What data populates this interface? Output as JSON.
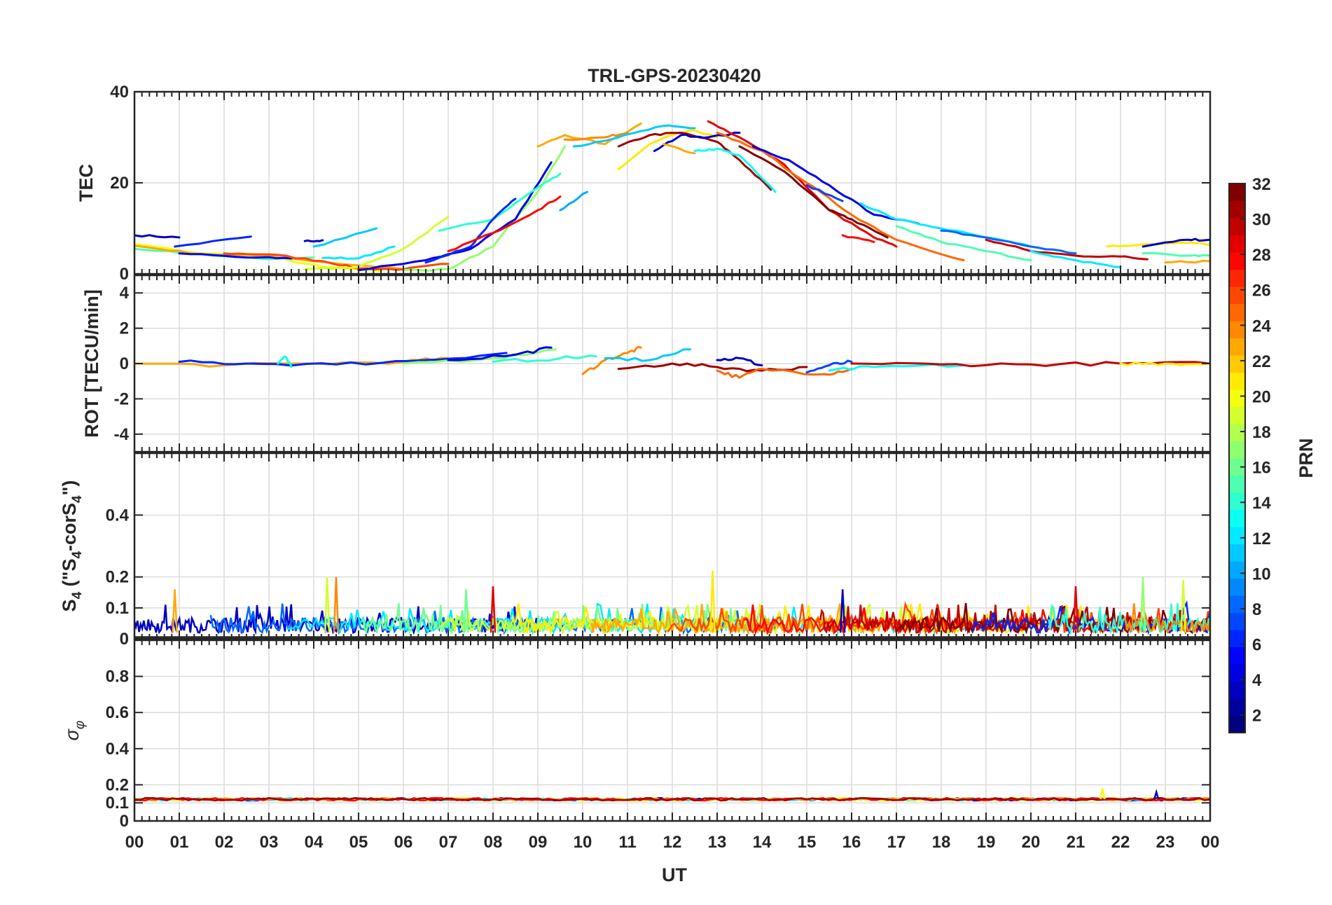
{
  "chart_data": {
    "type": "line",
    "title": "TRL-GPS-20230420",
    "xlabel": "UT",
    "x_tick_labels": [
      "00",
      "01",
      "02",
      "03",
      "04",
      "05",
      "06",
      "07",
      "08",
      "09",
      "10",
      "11",
      "12",
      "13",
      "14",
      "15",
      "16",
      "17",
      "18",
      "19",
      "20",
      "21",
      "22",
      "23",
      "00"
    ],
    "xlim": [
      0,
      24
    ],
    "grid": true,
    "colorbar": {
      "label": "PRN",
      "range": [
        1,
        32
      ],
      "tick_labels": [
        "2",
        "4",
        "6",
        "8",
        "10",
        "12",
        "14",
        "16",
        "18",
        "20",
        "22",
        "24",
        "26",
        "28",
        "30",
        "32"
      ],
      "tick_values": [
        2,
        4,
        6,
        8,
        10,
        12,
        14,
        16,
        18,
        20,
        22,
        24,
        26,
        28,
        30,
        32
      ],
      "colormap": "jet"
    },
    "panels": [
      {
        "ylabel": "TEC",
        "ylim": [
          0,
          40
        ],
        "y_ticks": [
          0,
          20,
          40
        ],
        "y_tick_labels": [
          "0",
          "20",
          "40"
        ],
        "series": [
          {
            "prn": 3,
            "x": [
              0.0,
              1.0
            ],
            "y": [
              8.5,
              8.0
            ]
          },
          {
            "prn": 6,
            "x": [
              0.9,
              2.6
            ],
            "y": [
              6.0,
              8.2
            ]
          },
          {
            "prn": 20,
            "x": [
              0.0,
              1.5,
              3.0,
              4.2,
              5.5
            ],
            "y": [
              6.5,
              4.5,
              3.8,
              1.5,
              0.6
            ]
          },
          {
            "prn": 15,
            "x": [
              0.0,
              1.5,
              3.0,
              4.0
            ],
            "y": [
              5.5,
              4.3,
              3.2,
              3.6
            ]
          },
          {
            "prn": 23,
            "x": [
              0.0,
              1.5,
              3.0,
              4.5,
              6.0
            ],
            "y": [
              6.2,
              4.3,
              4.0,
              2.3,
              1.0
            ]
          },
          {
            "prn": 5,
            "x": [
              1.0,
              2.5,
              3.5
            ],
            "y": [
              4.5,
              3.6,
              3.4
            ]
          },
          {
            "prn": 26,
            "x": [
              2.0,
              3.0,
              4.2,
              5.0,
              6.0,
              7.0
            ],
            "y": [
              4.5,
              4.3,
              2.8,
              1.2,
              1.0,
              2.2
            ]
          },
          {
            "prn": 3,
            "x": [
              3.8,
              4.2
            ],
            "y": [
              7.2,
              7.4
            ]
          },
          {
            "prn": 11,
            "x": [
              4.0,
              5.4
            ],
            "y": [
              6.0,
              10.0
            ]
          },
          {
            "prn": 12,
            "x": [
              4.2,
              5.0,
              5.8
            ],
            "y": [
              3.5,
              3.4,
              6.0
            ]
          },
          {
            "prn": 19,
            "x": [
              3.8,
              5.0,
              6.0,
              7.0
            ],
            "y": [
              1.0,
              1.5,
              5.5,
              12.5
            ]
          },
          {
            "prn": 17,
            "x": [
              6.0,
              7.0,
              8.0,
              9.0,
              9.6
            ],
            "y": [
              0.8,
              1.0,
              6.0,
              18.0,
              28.0
            ]
          },
          {
            "prn": 4,
            "x": [
              5.0,
              6.5,
              7.5,
              8.5,
              9.3
            ],
            "y": [
              0.8,
              3.0,
              5.5,
              12.0,
              24.5
            ]
          },
          {
            "prn": 14,
            "x": [
              6.8,
              8.0,
              9.0,
              9.5
            ],
            "y": [
              9.5,
              12.0,
              19.0,
              22.0
            ]
          },
          {
            "prn": 6,
            "x": [
              6.5,
              7.5,
              8.0,
              8.5
            ],
            "y": [
              2.5,
              6.0,
              12.0,
              16.5
            ]
          },
          {
            "prn": 28,
            "x": [
              7.0,
              8.0,
              9.0,
              9.5
            ],
            "y": [
              5.0,
              9.0,
              14.0,
              17.0
            ]
          },
          {
            "prn": 10,
            "x": [
              9.5,
              10.1
            ],
            "y": [
              14.0,
              18.0
            ]
          },
          {
            "prn": 23,
            "x": [
              9.0,
              9.6,
              10.5,
              11.3
            ],
            "y": [
              28.0,
              30.5,
              28.5,
              33.0
            ]
          },
          {
            "prn": 24,
            "x": [
              9.6,
              10.5,
              11.0
            ],
            "y": [
              29.5,
              30.0,
              31.0
            ]
          },
          {
            "prn": 11,
            "x": [
              9.8,
              10.8,
              11.8,
              12.5
            ],
            "y": [
              28.0,
              30.0,
              32.5,
              32.0
            ]
          },
          {
            "prn": 21,
            "x": [
              10.8,
              11.5,
              12.0,
              12.5,
              13.0
            ],
            "y": [
              23.0,
              28.5,
              30.5,
              31.5,
              30.0
            ]
          },
          {
            "prn": 31,
            "x": [
              10.8,
              11.5,
              12.2,
              13.0,
              13.5,
              14.2
            ],
            "y": [
              28.0,
              30.5,
              31.0,
              29.0,
              25.0,
              18.5
            ]
          },
          {
            "prn": 3,
            "x": [
              11.6,
              12.2,
              12.8,
              13.5
            ],
            "y": [
              27.0,
              30.5,
              30.0,
              31.0
            ]
          },
          {
            "prn": 13,
            "x": [
              12.5,
              13.0,
              13.5,
              14.3
            ],
            "y": [
              27.0,
              27.5,
              26.0,
              18.0
            ]
          },
          {
            "prn": 23,
            "x": [
              11.8,
              12.5
            ],
            "y": [
              28.5,
              26.5
            ]
          },
          {
            "prn": 29,
            "x": [
              12.8,
              13.5,
              14.5,
              15.5,
              16.5,
              17.0
            ],
            "y": [
              33.5,
              30.0,
              24.0,
              14.0,
              8.0,
              6.0
            ]
          },
          {
            "prn": 25,
            "x": [
              13.0,
              14.0,
              15.0,
              16.0,
              17.0,
              18.5
            ],
            "y": [
              31.0,
              27.0,
              20.0,
              13.0,
              7.5,
              3.0
            ]
          },
          {
            "prn": 32,
            "x": [
              13.5,
              14.5,
              15.5,
              16.0,
              16.8
            ],
            "y": [
              28.0,
              22.5,
              14.0,
              12.0,
              8.0
            ]
          },
          {
            "prn": 4,
            "x": [
              13.8,
              14.6,
              15.5,
              16.5,
              17.5
            ],
            "y": [
              28.0,
              25.0,
              19.5,
              13.0,
              11.0
            ]
          },
          {
            "prn": 7,
            "x": [
              15.0,
              15.8
            ],
            "y": [
              19.5,
              16.0
            ]
          },
          {
            "prn": 12,
            "x": [
              16.2,
              17.0,
              18.0,
              19.0,
              20.0
            ],
            "y": [
              15.5,
              12.0,
              10.0,
              8.0,
              6.0
            ]
          },
          {
            "prn": 15,
            "x": [
              17.0,
              18.0,
              19.0,
              20.0
            ],
            "y": [
              10.5,
              7.0,
              5.0,
              3.0
            ]
          },
          {
            "prn": 28,
            "x": [
              15.8,
              16.5
            ],
            "y": [
              8.5,
              7.0
            ]
          },
          {
            "prn": 8,
            "x": [
              18.0,
              19.0,
              20.0,
              21.0
            ],
            "y": [
              9.5,
              8.0,
              6.0,
              4.5
            ]
          },
          {
            "prn": 30,
            "x": [
              19.0,
              20.0,
              21.0,
              22.0,
              22.6
            ],
            "y": [
              7.5,
              5.0,
              4.0,
              3.8,
              3.2
            ]
          },
          {
            "prn": 12,
            "x": [
              20.0,
              21.0,
              22.0
            ],
            "y": [
              5.0,
              3.0,
              1.5
            ]
          },
          {
            "prn": 21,
            "x": [
              21.7,
              22.5,
              23.5,
              24.0
            ],
            "y": [
              6.0,
              6.5,
              6.8,
              6.5
            ]
          },
          {
            "prn": 3,
            "x": [
              22.5,
              23.5,
              24.0
            ],
            "y": [
              6.0,
              7.5,
              7.5
            ]
          },
          {
            "prn": 15,
            "x": [
              22.5,
              23.5,
              24.0
            ],
            "y": [
              4.5,
              4.0,
              4.0
            ]
          },
          {
            "prn": 23,
            "x": [
              23.0,
              24.0
            ],
            "y": [
              2.5,
              2.8
            ]
          }
        ]
      },
      {
        "ylabel": "ROT [TECU/min]",
        "ylim": [
          -5,
          5
        ],
        "y_ticks": [
          -4,
          -2,
          0,
          2,
          4
        ],
        "y_tick_labels": [
          "-4",
          "-2",
          "0",
          "2",
          "4"
        ],
        "series": [
          {
            "prn": 23,
            "x": [
              0.0,
              2.0,
              4.0,
              6.0,
              7.0
            ],
            "y": [
              0.0,
              -0.1,
              0.0,
              0.1,
              0.3
            ]
          },
          {
            "prn": 6,
            "x": [
              1.0,
              2.5,
              4.5,
              6.5,
              8.3
            ],
            "y": [
              0.1,
              0.0,
              -0.05,
              0.2,
              0.6
            ]
          },
          {
            "prn": 13,
            "x": [
              3.2,
              3.35,
              3.5
            ],
            "y": [
              0.0,
              0.4,
              -0.2
            ]
          },
          {
            "prn": 17,
            "x": [
              6.0,
              8.0,
              9.4
            ],
            "y": [
              0.0,
              0.3,
              0.8
            ]
          },
          {
            "prn": 4,
            "x": [
              7.0,
              8.5,
              9.3
            ],
            "y": [
              0.2,
              0.5,
              0.9
            ]
          },
          {
            "prn": 14,
            "x": [
              8.0,
              9.5,
              10.3
            ],
            "y": [
              0.1,
              0.3,
              0.4
            ]
          },
          {
            "prn": 24,
            "x": [
              10.0,
              10.5,
              11.0,
              11.3
            ],
            "y": [
              -0.6,
              0.2,
              0.6,
              0.9
            ]
          },
          {
            "prn": 11,
            "x": [
              10.5,
              11.5,
              12.4
            ],
            "y": [
              0.3,
              0.2,
              0.8
            ]
          },
          {
            "prn": 31,
            "x": [
              10.8,
              12.0,
              13.0,
              14.0,
              15.0
            ],
            "y": [
              -0.3,
              0.0,
              -0.2,
              -0.4,
              -0.2
            ]
          },
          {
            "prn": 25,
            "x": [
              13.0,
              13.5,
              14.0,
              15.4,
              16.0
            ],
            "y": [
              -0.4,
              -0.8,
              -0.3,
              -0.6,
              -0.3
            ]
          },
          {
            "prn": 3,
            "x": [
              13.0,
              13.5,
              14.0
            ],
            "y": [
              0.2,
              0.3,
              -0.1
            ]
          },
          {
            "prn": 7,
            "x": [
              15.0,
              15.5,
              16.0
            ],
            "y": [
              -0.5,
              -0.1,
              0.1
            ]
          },
          {
            "prn": 13,
            "x": [
              15.5,
              16.5,
              18.5
            ],
            "y": [
              -0.4,
              -0.2,
              -0.1
            ]
          },
          {
            "prn": 30,
            "x": [
              16.0,
              18.0,
              20.0,
              22.0,
              24.0
            ],
            "y": [
              0.0,
              -0.05,
              -0.05,
              0.0,
              0.0
            ]
          },
          {
            "prn": 21,
            "x": [
              22.0,
              23.0,
              24.0
            ],
            "y": [
              0.0,
              0.0,
              0.0
            ]
          }
        ]
      },
      {
        "ylabel": "S4 (\"S4-corS4\")",
        "ylim": [
          0,
          0.6
        ],
        "y_ticks": [
          0,
          0.1,
          0.2,
          0.4
        ],
        "y_tick_labels": [
          "0",
          "0.1",
          "0.2",
          "0.4"
        ],
        "peaks": [
          {
            "prn": 23,
            "x": [
              0.9
            ],
            "y": [
              0.16
            ]
          },
          {
            "prn": 19,
            "x": [
              4.3
            ],
            "y": [
              0.2
            ]
          },
          {
            "prn": 24,
            "x": [
              4.5
            ],
            "y": [
              0.2
            ]
          },
          {
            "prn": 16,
            "x": [
              7.4
            ],
            "y": [
              0.16
            ]
          },
          {
            "prn": 29,
            "x": [
              8.0
            ],
            "y": [
              0.17
            ]
          },
          {
            "prn": 21,
            "x": [
              12.9
            ],
            "y": [
              0.22
            ]
          },
          {
            "prn": 3,
            "x": [
              15.8
            ],
            "y": [
              0.16
            ]
          },
          {
            "prn": 29,
            "x": [
              21.0
            ],
            "y": [
              0.17
            ]
          },
          {
            "prn": 17,
            "x": [
              22.5
            ],
            "y": [
              0.2
            ]
          },
          {
            "prn": 19,
            "x": [
              23.4
            ],
            "y": [
              0.19
            ]
          }
        ],
        "baseline_band": [
          0.0,
          0.1
        ]
      },
      {
        "ylabel": "σφ",
        "ylim": [
          0,
          1
        ],
        "y_ticks": [
          0,
          0.1,
          0.2,
          0.4,
          0.6,
          0.8
        ],
        "y_tick_labels": [
          "0",
          "0.1",
          "0.2",
          "0.4",
          "0.6",
          "0.8"
        ],
        "baseline": 0.12,
        "peaks": [
          {
            "prn": 20,
            "x": [
              21.6
            ],
            "y": [
              0.18
            ]
          },
          {
            "prn": 3,
            "x": [
              22.8
            ],
            "y": [
              0.16
            ]
          }
        ]
      }
    ]
  }
}
